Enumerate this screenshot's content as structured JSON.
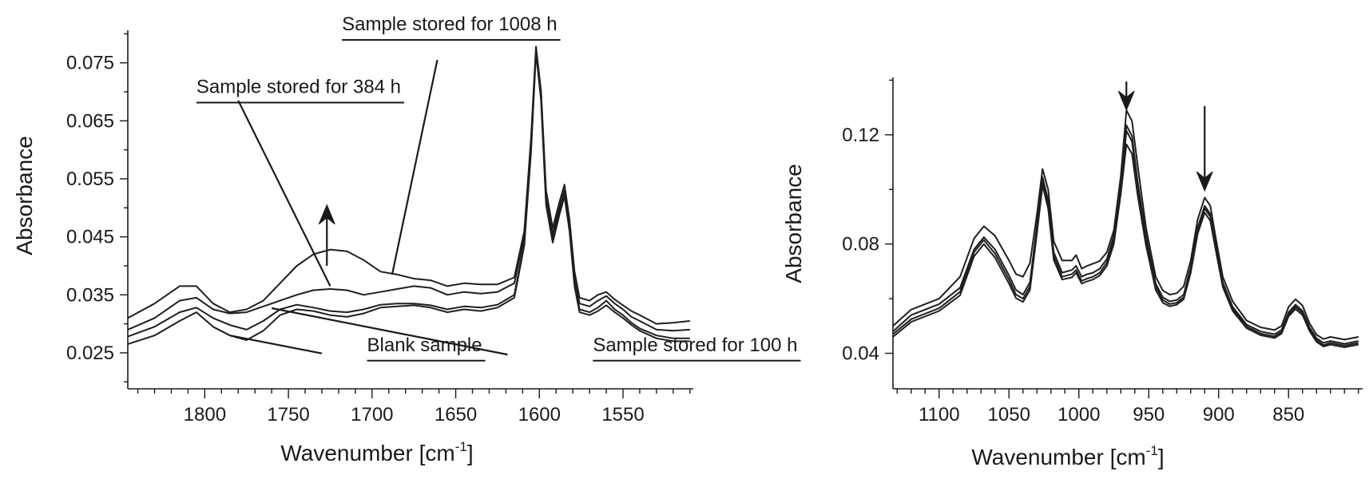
{
  "chart_data": [
    {
      "type": "line",
      "xlabel": "Wavenumber [cm",
      "xlabel_sup": "-1",
      "xlabel_close": "]",
      "ylabel": "Absorbance",
      "x_reversed": true,
      "xlim": [
        1846,
        1508
      ],
      "ylim": [
        0.0188,
        0.0806
      ],
      "x_ticks": [
        1800,
        1750,
        1700,
        1650,
        1600,
        1550
      ],
      "x_tick_labels": [
        "1800",
        "1750",
        "1700",
        "1650",
        "1600",
        "1550"
      ],
      "y_ticks": [
        0.025,
        0.035,
        0.045,
        0.055,
        0.065,
        0.075
      ],
      "y_tick_labels": [
        "0.025",
        "0.035",
        "0.045",
        "0.055",
        "0.065",
        "0.075"
      ],
      "series": [
        {
          "x": [
            1846,
            1830,
            1815,
            1805,
            1795,
            1785,
            1775,
            1765,
            1755,
            1745,
            1735,
            1725,
            1715,
            1705,
            1695,
            1685,
            1675,
            1665,
            1655,
            1645,
            1635,
            1625,
            1615,
            1609,
            1605,
            1602,
            1599,
            1596,
            1592,
            1588,
            1585,
            1582,
            1579,
            1576,
            1570,
            1565,
            1560,
            1555,
            1550,
            1545,
            1540,
            1530,
            1520,
            1510
          ],
          "y": [
            0.031,
            0.0335,
            0.0365,
            0.0365,
            0.0335,
            0.032,
            0.0325,
            0.034,
            0.037,
            0.04,
            0.042,
            0.0428,
            0.0425,
            0.041,
            0.039,
            0.0385,
            0.0378,
            0.0375,
            0.0365,
            0.037,
            0.0368,
            0.0368,
            0.038,
            0.046,
            0.062,
            0.0778,
            0.07,
            0.053,
            0.0465,
            0.051,
            0.054,
            0.048,
            0.039,
            0.0345,
            0.034,
            0.035,
            0.0355,
            0.0342,
            0.0332,
            0.0322,
            0.0315,
            0.03,
            0.0302,
            0.0305
          ]
        },
        {
          "x": [
            1846,
            1830,
            1815,
            1805,
            1795,
            1785,
            1775,
            1765,
            1755,
            1745,
            1735,
            1725,
            1715,
            1705,
            1695,
            1685,
            1675,
            1665,
            1655,
            1645,
            1635,
            1625,
            1615,
            1609,
            1605,
            1602,
            1599,
            1596,
            1592,
            1588,
            1585,
            1582,
            1579,
            1576,
            1570,
            1565,
            1560,
            1555,
            1550,
            1545,
            1540,
            1530,
            1520,
            1510
          ],
          "y": [
            0.029,
            0.031,
            0.034,
            0.0345,
            0.0325,
            0.0318,
            0.032,
            0.033,
            0.034,
            0.035,
            0.0358,
            0.036,
            0.0358,
            0.035,
            0.0355,
            0.036,
            0.0365,
            0.0362,
            0.035,
            0.0355,
            0.0352,
            0.0355,
            0.037,
            0.045,
            0.061,
            0.0775,
            0.07,
            0.052,
            0.0455,
            0.05,
            0.053,
            0.047,
            0.038,
            0.0335,
            0.033,
            0.034,
            0.0348,
            0.0335,
            0.0325,
            0.0312,
            0.0305,
            0.029,
            0.0288,
            0.029
          ]
        },
        {
          "x": [
            1846,
            1830,
            1815,
            1805,
            1795,
            1785,
            1775,
            1765,
            1755,
            1745,
            1735,
            1725,
            1715,
            1705,
            1695,
            1685,
            1675,
            1665,
            1655,
            1645,
            1635,
            1625,
            1615,
            1609,
            1605,
            1602,
            1599,
            1596,
            1592,
            1588,
            1585,
            1582,
            1579,
            1576,
            1570,
            1565,
            1560,
            1555,
            1550,
            1545,
            1540,
            1530,
            1520,
            1510
          ],
          "y": [
            0.0278,
            0.0295,
            0.032,
            0.0328,
            0.031,
            0.0298,
            0.029,
            0.0305,
            0.0325,
            0.0333,
            0.0328,
            0.0322,
            0.032,
            0.0325,
            0.0333,
            0.0335,
            0.0335,
            0.0332,
            0.0325,
            0.033,
            0.0328,
            0.0333,
            0.035,
            0.044,
            0.06,
            0.0772,
            0.069,
            0.051,
            0.0448,
            0.0492,
            0.0525,
            0.0465,
            0.037,
            0.0325,
            0.032,
            0.0328,
            0.034,
            0.0325,
            0.0315,
            0.0302,
            0.0292,
            0.028,
            0.0275,
            0.0275
          ]
        },
        {
          "x": [
            1846,
            1830,
            1815,
            1805,
            1795,
            1785,
            1775,
            1765,
            1755,
            1745,
            1735,
            1725,
            1715,
            1705,
            1695,
            1685,
            1675,
            1665,
            1655,
            1645,
            1635,
            1625,
            1615,
            1609,
            1605,
            1602,
            1599,
            1596,
            1592,
            1588,
            1585,
            1582,
            1579,
            1576,
            1570,
            1565,
            1560,
            1555,
            1550,
            1545,
            1540,
            1530,
            1520,
            1510
          ],
          "y": [
            0.0265,
            0.028,
            0.0305,
            0.032,
            0.0295,
            0.028,
            0.0272,
            0.0288,
            0.0315,
            0.0325,
            0.0322,
            0.0315,
            0.0312,
            0.0318,
            0.0328,
            0.033,
            0.0332,
            0.0328,
            0.032,
            0.0325,
            0.0322,
            0.0328,
            0.0345,
            0.0435,
            0.0595,
            0.0768,
            0.0685,
            0.0505,
            0.044,
            0.0488,
            0.052,
            0.046,
            0.0365,
            0.032,
            0.0315,
            0.0322,
            0.0332,
            0.032,
            0.031,
            0.0298,
            0.0288,
            0.0275,
            0.027,
            0.027
          ]
        }
      ],
      "annotations": [
        {
          "text": "Sample stored for 1008 h",
          "label_x": 1718,
          "label_y": 0.0806,
          "line_from": [
            1661,
            0.0755
          ],
          "line_to": [
            1688,
            0.0385
          ]
        },
        {
          "text": "Sample stored for 384 h",
          "label_x": 1805,
          "label_y": 0.0698,
          "line_from": [
            1780,
            0.0685
          ],
          "line_to": [
            1725,
            0.0365
          ]
        },
        {
          "text": "Blank sample",
          "label_x": 1703,
          "label_y": 0.0253,
          "line_from": [
            1730,
            0.0249
          ],
          "line_to": [
            1785,
            0.028
          ]
        },
        {
          "text": "Sample stored for 100 h",
          "label_x": 1568,
          "label_y": 0.0253,
          "line_from": [
            1619,
            0.0247
          ],
          "line_to": [
            1760,
            0.0327
          ]
        }
      ],
      "arrows": [
        {
          "x": 1727,
          "from": 0.04,
          "to": 0.0505
        }
      ]
    },
    {
      "type": "line",
      "xlabel": "Wavenumber [cm",
      "xlabel_sup": "-1",
      "xlabel_close": "]",
      "ylabel": "Absorbance",
      "x_reversed": true,
      "xlim": [
        1133,
        797
      ],
      "ylim": [
        0.027,
        0.141
      ],
      "x_ticks": [
        1100,
        1050,
        1000,
        950,
        900,
        850
      ],
      "x_tick_labels": [
        "1100",
        "1050",
        "1000",
        "950",
        "900",
        "850"
      ],
      "y_ticks": [
        0.04,
        0.08,
        0.12
      ],
      "y_tick_labels": [
        "0.04",
        "0.08",
        "0.12"
      ],
      "series": [
        {
          "x": [
            1133,
            1120,
            1100,
            1085,
            1075,
            1068,
            1060,
            1050,
            1045,
            1040,
            1035,
            1030,
            1026,
            1022,
            1018,
            1012,
            1005,
            1002,
            998,
            995,
            990,
            985,
            980,
            975,
            970,
            966,
            962,
            958,
            952,
            945,
            940,
            935,
            930,
            925,
            920,
            915,
            910,
            906,
            902,
            897,
            890,
            880,
            870,
            860,
            855,
            850,
            845,
            840,
            835,
            830,
            825,
            820,
            810,
            800
          ],
          "y": [
            0.05,
            0.056,
            0.06,
            0.068,
            0.082,
            0.0865,
            0.083,
            0.074,
            0.069,
            0.068,
            0.073,
            0.091,
            0.1075,
            0.1,
            0.081,
            0.074,
            0.074,
            0.076,
            0.071,
            0.0718,
            0.0728,
            0.0738,
            0.077,
            0.085,
            0.105,
            0.129,
            0.125,
            0.109,
            0.086,
            0.068,
            0.063,
            0.0615,
            0.062,
            0.0645,
            0.074,
            0.089,
            0.097,
            0.094,
            0.082,
            0.068,
            0.059,
            0.052,
            0.0495,
            0.0485,
            0.05,
            0.057,
            0.0598,
            0.0575,
            0.051,
            0.0468,
            0.0452,
            0.046,
            0.045,
            0.046
          ]
        },
        {
          "x": [
            1133,
            1120,
            1100,
            1085,
            1075,
            1068,
            1060,
            1050,
            1045,
            1040,
            1035,
            1030,
            1026,
            1022,
            1018,
            1012,
            1005,
            1002,
            998,
            995,
            990,
            985,
            980,
            975,
            970,
            966,
            962,
            958,
            952,
            945,
            940,
            935,
            930,
            925,
            920,
            915,
            910,
            906,
            902,
            897,
            890,
            880,
            870,
            860,
            855,
            850,
            845,
            840,
            835,
            830,
            825,
            820,
            810,
            800
          ],
          "y": [
            0.048,
            0.054,
            0.058,
            0.064,
            0.078,
            0.0825,
            0.078,
            0.0685,
            0.0632,
            0.0615,
            0.066,
            0.087,
            0.1045,
            0.096,
            0.077,
            0.0695,
            0.0705,
            0.072,
            0.068,
            0.0688,
            0.0695,
            0.071,
            0.0745,
            0.083,
            0.102,
            0.1235,
            0.1195,
            0.103,
            0.083,
            0.0655,
            0.0605,
            0.059,
            0.0595,
            0.0615,
            0.0715,
            0.086,
            0.094,
            0.091,
            0.0795,
            0.066,
            0.057,
            0.0505,
            0.048,
            0.047,
            0.0485,
            0.055,
            0.0578,
            0.0555,
            0.0495,
            0.0455,
            0.0438,
            0.0445,
            0.0435,
            0.0445
          ]
        },
        {
          "x": [
            1133,
            1120,
            1100,
            1085,
            1075,
            1068,
            1060,
            1050,
            1045,
            1040,
            1035,
            1030,
            1026,
            1022,
            1018,
            1012,
            1005,
            1002,
            998,
            995,
            990,
            985,
            980,
            975,
            970,
            966,
            962,
            958,
            952,
            945,
            940,
            935,
            930,
            925,
            920,
            915,
            910,
            906,
            902,
            897,
            890,
            880,
            870,
            860,
            855,
            850,
            845,
            840,
            835,
            830,
            825,
            820,
            810,
            800
          ],
          "y": [
            0.047,
            0.0525,
            0.0565,
            0.0625,
            0.077,
            0.0815,
            0.0765,
            0.067,
            0.0615,
            0.06,
            0.0645,
            0.0855,
            0.103,
            0.0945,
            0.0755,
            0.068,
            0.069,
            0.0705,
            0.0665,
            0.0672,
            0.068,
            0.0695,
            0.0732,
            0.0815,
            0.1,
            0.1215,
            0.1175,
            0.1015,
            0.0815,
            0.0645,
            0.0595,
            0.058,
            0.0585,
            0.0605,
            0.0705,
            0.085,
            0.093,
            0.09,
            0.0785,
            0.065,
            0.0562,
            0.0498,
            0.0472,
            0.0462,
            0.0478,
            0.0542,
            0.057,
            0.0548,
            0.0488,
            0.0448,
            0.043,
            0.0438,
            0.0428,
            0.0438
          ]
        },
        {
          "x": [
            1133,
            1120,
            1100,
            1085,
            1075,
            1068,
            1060,
            1050,
            1045,
            1040,
            1035,
            1030,
            1026,
            1022,
            1018,
            1012,
            1005,
            1002,
            998,
            995,
            990,
            985,
            980,
            975,
            970,
            966,
            962,
            958,
            952,
            945,
            940,
            935,
            930,
            925,
            920,
            915,
            910,
            906,
            902,
            897,
            890,
            880,
            870,
            860,
            855,
            850,
            845,
            840,
            835,
            830,
            825,
            820,
            810,
            800
          ],
          "y": [
            0.046,
            0.0515,
            0.0555,
            0.0612,
            0.0755,
            0.08,
            0.075,
            0.0655,
            0.0602,
            0.0588,
            0.0632,
            0.084,
            0.1015,
            0.093,
            0.0742,
            0.067,
            0.0678,
            0.0695,
            0.0655,
            0.0662,
            0.067,
            0.0685,
            0.072,
            0.08,
            0.0985,
            0.1165,
            0.113,
            0.098,
            0.0795,
            0.0632,
            0.0585,
            0.0572,
            0.0578,
            0.0598,
            0.0695,
            0.0838,
            0.0915,
            0.0885,
            0.0775,
            0.0642,
            0.0555,
            0.0492,
            0.0466,
            0.0456,
            0.0472,
            0.0535,
            0.0562,
            0.054,
            0.0482,
            0.0442,
            0.0425,
            0.0432,
            0.0422,
            0.0432
          ]
        }
      ],
      "annotations": [],
      "arrows": [
        {
          "x": 966,
          "from": 0.1395,
          "to": 0.129
        },
        {
          "x": 910,
          "from": 0.1305,
          "to": 0.0995
        }
      ]
    }
  ]
}
